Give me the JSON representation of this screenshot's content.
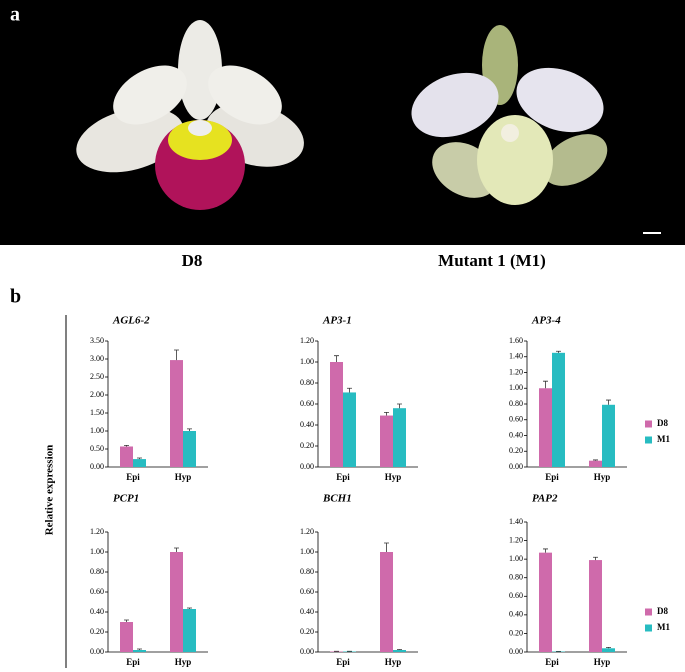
{
  "panel_labels": [
    "a",
    "b"
  ],
  "photo_captions": [
    "D8",
    "Mutant 1 (M1)"
  ],
  "y_label": "Relative expression",
  "chart_data": [
    {
      "type": "bar",
      "title": "AGL6-2",
      "categories": [
        "Epi",
        "Hyp"
      ],
      "series": [
        {
          "name": "D8",
          "color": "#cf6aab",
          "values": [
            0.57,
            2.97
          ],
          "errors": [
            0.03,
            0.28
          ]
        },
        {
          "name": "M1",
          "color": "#27bcc1",
          "values": [
            0.22,
            1.0
          ],
          "errors": [
            0.03,
            0.06
          ]
        }
      ],
      "ylim": [
        0,
        3.5
      ],
      "yticks": [
        {
          "value": 0,
          "label": "0.00"
        },
        {
          "value": 0.5,
          "label": "0.50"
        },
        {
          "value": 1,
          "label": "1.00"
        },
        {
          "value": 1.5,
          "label": "1.50"
        },
        {
          "value": 2,
          "label": "2.00"
        },
        {
          "value": 2.5,
          "label": "2.50"
        },
        {
          "value": 3,
          "label": "3.00"
        },
        {
          "value": 3.5,
          "label": "3.50"
        }
      ]
    },
    {
      "type": "bar",
      "title": "AP3-1",
      "categories": [
        "Epi",
        "Hyp"
      ],
      "series": [
        {
          "name": "D8",
          "color": "#cf6aab",
          "values": [
            1.0,
            0.49
          ],
          "errors": [
            0.06,
            0.03
          ]
        },
        {
          "name": "M1",
          "color": "#27bcc1",
          "values": [
            0.71,
            0.56
          ],
          "errors": [
            0.04,
            0.04
          ]
        }
      ],
      "ylim": [
        0,
        1.2
      ],
      "yticks": [
        {
          "value": 0,
          "label": "0.00"
        },
        {
          "value": 0.2,
          "label": "0.20"
        },
        {
          "value": 0.4,
          "label": "0.40"
        },
        {
          "value": 0.6,
          "label": "0.60"
        },
        {
          "value": 0.8,
          "label": "0.80"
        },
        {
          "value": 1,
          "label": "1.00"
        },
        {
          "value": 1.2,
          "label": "1.20"
        }
      ]
    },
    {
      "type": "bar",
      "title": "AP3-4",
      "categories": [
        "Epi",
        "Hyp"
      ],
      "legend": "right",
      "series": [
        {
          "name": "D8",
          "color": "#cf6aab",
          "values": [
            1.0,
            0.08
          ],
          "errors": [
            0.09,
            0.01
          ]
        },
        {
          "name": "M1",
          "color": "#27bcc1",
          "values": [
            1.45,
            0.79
          ],
          "errors": [
            0.02,
            0.06
          ]
        }
      ],
      "ylim": [
        0,
        1.6
      ],
      "yticks": [
        {
          "value": 0,
          "label": "0.00"
        },
        {
          "value": 0.2,
          "label": "0.20"
        },
        {
          "value": 0.4,
          "label": "0.40"
        },
        {
          "value": 0.6,
          "label": "0.60"
        },
        {
          "value": 0.8,
          "label": "0.80"
        },
        {
          "value": 1,
          "label": "1.00"
        },
        {
          "value": 1.2,
          "label": "1.20"
        },
        {
          "value": 1.4,
          "label": "1.40"
        },
        {
          "value": 1.6,
          "label": "1.60"
        }
      ]
    },
    {
      "type": "bar",
      "title": "PCP1",
      "categories": [
        "Epi",
        "Hyp"
      ],
      "series": [
        {
          "name": "D8",
          "color": "#cf6aab",
          "values": [
            0.3,
            1.0
          ],
          "errors": [
            0.02,
            0.04
          ]
        },
        {
          "name": "M1",
          "color": "#27bcc1",
          "values": [
            0.02,
            0.43
          ],
          "errors": [
            0.01,
            0.01
          ]
        }
      ],
      "ylim": [
        0,
        1.2
      ],
      "yticks": [
        {
          "value": 0,
          "label": "0.00"
        },
        {
          "value": 0.2,
          "label": "0.20"
        },
        {
          "value": 0.4,
          "label": "0.40"
        },
        {
          "value": 0.6,
          "label": "0.60"
        },
        {
          "value": 0.8,
          "label": "0.80"
        },
        {
          "value": 1,
          "label": "1.00"
        },
        {
          "value": 1.2,
          "label": "1.20"
        }
      ]
    },
    {
      "type": "bar",
      "title": "BCH1",
      "categories": [
        "Epi",
        "Hyp"
      ],
      "series": [
        {
          "name": "D8",
          "color": "#cf6aab",
          "values": [
            0.005,
            1.0
          ],
          "errors": [
            0.002,
            0.09
          ]
        },
        {
          "name": "M1",
          "color": "#27bcc1",
          "values": [
            0.005,
            0.02
          ],
          "errors": [
            0.002,
            0.005
          ]
        }
      ],
      "ylim": [
        0,
        1.2
      ],
      "yticks": [
        {
          "value": 0,
          "label": "0.00"
        },
        {
          "value": 0.2,
          "label": "0.20"
        },
        {
          "value": 0.4,
          "label": "0.40"
        },
        {
          "value": 0.6,
          "label": "0.60"
        },
        {
          "value": 0.8,
          "label": "0.80"
        },
        {
          "value": 1,
          "label": "1.00"
        },
        {
          "value": 1.2,
          "label": "1.20"
        }
      ]
    },
    {
      "type": "bar",
      "title": "PAP2",
      "categories": [
        "Epi",
        "Hyp"
      ],
      "legend": "right",
      "series": [
        {
          "name": "D8",
          "color": "#cf6aab",
          "values": [
            1.07,
            0.99
          ],
          "errors": [
            0.04,
            0.03
          ]
        },
        {
          "name": "M1",
          "color": "#27bcc1",
          "values": [
            0.005,
            0.04
          ],
          "errors": [
            0.002,
            0.01
          ]
        }
      ],
      "ylim": [
        0,
        1.4
      ],
      "yticks": [
        {
          "value": 0,
          "label": "0.00"
        },
        {
          "value": 0.2,
          "label": "0.20"
        },
        {
          "value": 0.4,
          "label": "0.40"
        },
        {
          "value": 0.6,
          "label": "0.60"
        },
        {
          "value": 0.8,
          "label": "0.80"
        },
        {
          "value": 1,
          "label": "1.00"
        },
        {
          "value": 1.2,
          "label": "1.20"
        },
        {
          "value": 1.4,
          "label": "1.40"
        }
      ]
    }
  ]
}
